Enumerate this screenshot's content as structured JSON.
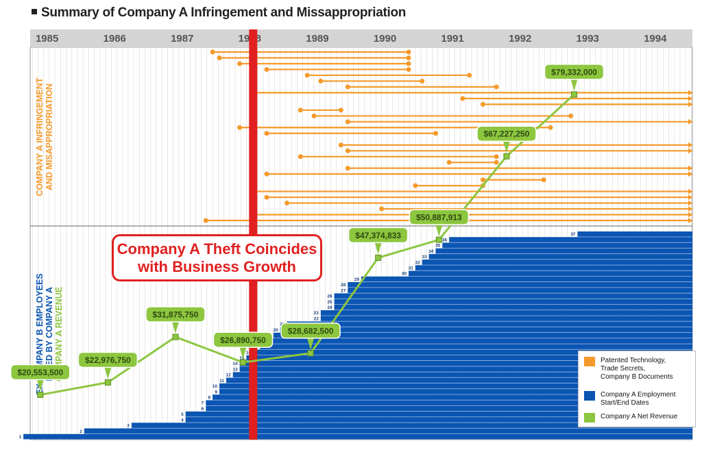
{
  "title": "Summary of Company A Infringement and Missappropriation",
  "callout": {
    "line1": "Company A Theft Coincides",
    "line2": "with Business Growth"
  },
  "colors": {
    "orange": "#f59a2a",
    "blue": "#0b55b3",
    "green": "#8dc63f",
    "red": "#e02020",
    "axis_bg": "#d4d4d4"
  },
  "legend": {
    "items": [
      {
        "label": "Patented Technology,\nTrade Secrets,\nCompany B Documents",
        "color": "#f59a2a"
      },
      {
        "label": "Company A Employment\nStart/End Dates",
        "color": "#0b55b3"
      },
      {
        "label": "Company A Net Revenue",
        "color": "#8dc63f"
      }
    ]
  },
  "chart_data": {
    "type": "line",
    "title": "Summary of Company A Infringement and Missappropriation",
    "x_axis": {
      "type": "year",
      "ticks": [
        "1985",
        "1986",
        "1987",
        "1988",
        "1989",
        "1990",
        "1991",
        "1992",
        "1993",
        "1994"
      ],
      "range": [
        1984.8,
        1994.6
      ]
    },
    "sections": {
      "top_label": [
        "COMPANY A INFRINGEMENT",
        "AND MISAPPROPRIATION"
      ],
      "bottom_label": [
        "EX-COMPANY B EMPLOYEES",
        "HIRED BY COMPANY A"
      ],
      "bottom_label_green": "COMPANY A REVENUE"
    },
    "theft_marker_year": 1988.1,
    "series": [
      {
        "name": "Company A Net Revenue",
        "color": "#8dc63f",
        "points": [
          {
            "x": 1984.95,
            "y": 20553500,
            "label": "$20,553,500"
          },
          {
            "x": 1985.95,
            "y": 22976750,
            "label": "$22,976,750"
          },
          {
            "x": 1986.95,
            "y": 31875750,
            "label": "$31,875,750"
          },
          {
            "x": 1987.95,
            "y": 26890750,
            "label": "$26,890,750"
          },
          {
            "x": 1988.95,
            "y": 28682500,
            "label": "$28,682,500"
          },
          {
            "x": 1989.95,
            "y": 47374833,
            "label": "$47,374,833"
          },
          {
            "x": 1990.85,
            "y": 50887913,
            "label": "$50,887,913"
          },
          {
            "x": 1991.85,
            "y": 67227250,
            "label": "$67,227,250"
          },
          {
            "x": 1992.85,
            "y": 79332000,
            "label": "$79,332,000"
          }
        ]
      }
    ],
    "infringement_bars": [
      {
        "start": 1987.5,
        "end": 1990.4
      },
      {
        "start": 1987.6,
        "end": 1990.4
      },
      {
        "start": 1987.9,
        "end": 1990.4
      },
      {
        "start": 1988.3,
        "end": 1990.4
      },
      {
        "start": 1988.9,
        "end": 1991.3
      },
      {
        "start": 1989.1,
        "end": 1990.6
      },
      {
        "start": 1989.5,
        "end": 1991.7
      },
      {
        "start": 1988.1,
        "end": 1994.6
      },
      {
        "start": 1991.2,
        "end": 1994.6
      },
      {
        "start": 1991.5,
        "end": 1994.6
      },
      {
        "start": 1988.8,
        "end": 1989.4
      },
      {
        "start": 1989.0,
        "end": 1992.8
      },
      {
        "start": 1989.5,
        "end": 1994.6
      },
      {
        "start": 1987.9,
        "end": 1992.5
      },
      {
        "start": 1988.3,
        "end": 1990.8
      },
      {
        "start": 1991.5,
        "end": 1992.1
      },
      {
        "start": 1989.4,
        "end": 1994.6
      },
      {
        "start": 1989.5,
        "end": 1994.6
      },
      {
        "start": 1988.8,
        "end": 1991.7
      },
      {
        "start": 1991.0,
        "end": 1991.7
      },
      {
        "start": 1989.5,
        "end": 1994.6
      },
      {
        "start": 1988.3,
        "end": 1994.6
      },
      {
        "start": 1991.5,
        "end": 1992.4
      },
      {
        "start": 1990.5,
        "end": 1991.5
      },
      {
        "start": 1988.1,
        "end": 1994.6
      },
      {
        "start": 1988.3,
        "end": 1994.6
      },
      {
        "start": 1988.6,
        "end": 1994.6
      },
      {
        "start": 1990.0,
        "end": 1994.6
      },
      {
        "start": 1988.1,
        "end": 1994.6
      },
      {
        "start": 1987.4,
        "end": 1994.6
      }
    ],
    "employment_staircase": [
      {
        "n": 1,
        "start": 1984.7
      },
      {
        "n": 2,
        "start": 1985.6
      },
      {
        "n": 3,
        "start": 1986.3
      },
      {
        "n": 4,
        "start": 1987.1
      },
      {
        "n": 5,
        "start": 1987.1
      },
      {
        "n": 6,
        "start": 1987.4
      },
      {
        "n": 7,
        "start": 1987.4
      },
      {
        "n": 8,
        "start": 1987.5
      },
      {
        "n": 9,
        "start": 1987.6
      },
      {
        "n": 10,
        "start": 1987.6
      },
      {
        "n": 11,
        "start": 1987.7
      },
      {
        "n": 12,
        "start": 1987.8
      },
      {
        "n": 13,
        "start": 1987.9
      },
      {
        "n": 14,
        "start": 1987.9
      },
      {
        "n": 15,
        "start": 1988.0
      },
      {
        "n": 16,
        "start": 1988.1
      },
      {
        "n": 17,
        "start": 1988.2
      },
      {
        "n": 18,
        "start": 1988.3
      },
      {
        "n": 19,
        "start": 1988.4
      },
      {
        "n": 20,
        "start": 1988.5
      },
      {
        "n": 21,
        "start": 1988.6
      },
      {
        "n": 22,
        "start": 1989.1
      },
      {
        "n": 23,
        "start": 1989.1
      },
      {
        "n": 24,
        "start": 1989.3
      },
      {
        "n": 25,
        "start": 1989.3
      },
      {
        "n": 26,
        "start": 1989.3
      },
      {
        "n": 27,
        "start": 1989.5
      },
      {
        "n": 28,
        "start": 1989.5
      },
      {
        "n": 29,
        "start": 1989.7
      },
      {
        "n": 30,
        "start": 1990.4
      },
      {
        "n": 31,
        "start": 1990.5
      },
      {
        "n": 32,
        "start": 1990.6
      },
      {
        "n": 33,
        "start": 1990.7
      },
      {
        "n": 34,
        "start": 1990.8
      },
      {
        "n": 35,
        "start": 1990.9
      },
      {
        "n": 36,
        "start": 1991.0
      },
      {
        "n": 37,
        "start": 1992.9
      }
    ]
  }
}
